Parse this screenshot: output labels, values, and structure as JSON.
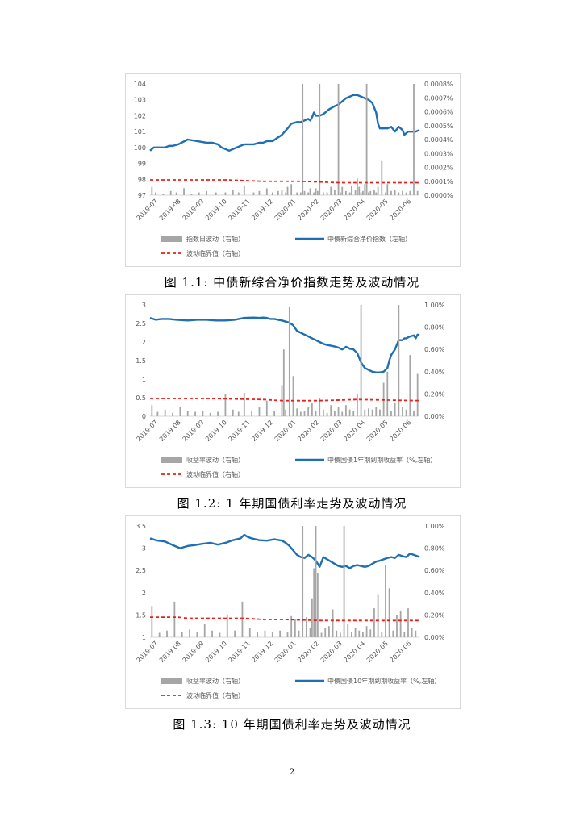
{
  "colors": {
    "line": "#1f6fb5",
    "bar": "#a6a6a6",
    "threshold": "#e8201c",
    "grid": "#d9d9d9"
  },
  "page_number": "2",
  "chart_data": [
    {
      "type": "line",
      "caption": "图 1.1:  中债新综合净价指数走势及波动情况",
      "x_ticks": [
        "2019-07",
        "2019-08",
        "2019-09",
        "2019-10",
        "2019-11",
        "2019-12",
        "2020-01",
        "2020-02",
        "2020-03",
        "2020-04",
        "2020-05",
        "2020-06"
      ],
      "y_left": {
        "ticks": [
          "104",
          "103",
          "102",
          "101",
          "100",
          "99",
          "98",
          "97"
        ],
        "range": [
          97,
          104
        ]
      },
      "y_right": {
        "ticks": [
          "0.0008%",
          "0.0007%",
          "0.0006%",
          "0.0005%",
          "0.0004%",
          "0.0003%",
          "0.0002%",
          "0.0001%",
          "0.0000%"
        ],
        "range": [
          0,
          0.0008
        ]
      },
      "legend": {
        "bar": "指数日波动（右轴）",
        "line": "中债新综合净价指数（左轴）",
        "threshold": "波动临界值（右轴）"
      },
      "series": [
        {
          "name": "中债新综合净价指数（左轴）",
          "axis": "left",
          "x": [
            0,
            2,
            5,
            8,
            10,
            12,
            15,
            20,
            25,
            30,
            33,
            36,
            38,
            42,
            46,
            50,
            55,
            58,
            60,
            62,
            65,
            70,
            73,
            75,
            78,
            80,
            82,
            84,
            85,
            86,
            87,
            88,
            90,
            92,
            95,
            98,
            100,
            102,
            104,
            106,
            108,
            110,
            112,
            114,
            116,
            118,
            119,
            120,
            121,
            122,
            124,
            126,
            128,
            130,
            132,
            134,
            135,
            136,
            137,
            139,
            141,
            143
          ],
          "values": [
            99.8,
            100.0,
            100.0,
            100.0,
            100.1,
            100.1,
            100.2,
            100.5,
            100.4,
            100.3,
            100.3,
            100.2,
            100.0,
            99.8,
            100.0,
            100.2,
            100.2,
            100.3,
            100.3,
            100.4,
            100.4,
            100.8,
            101.2,
            101.5,
            101.6,
            101.6,
            101.7,
            101.8,
            101.7,
            101.9,
            102.2,
            102.0,
            102.0,
            102.1,
            102.4,
            102.6,
            102.7,
            102.9,
            103.1,
            103.2,
            103.3,
            103.3,
            103.2,
            103.1,
            103.0,
            102.8,
            102.5,
            102.2,
            101.5,
            101.2,
            101.2,
            101.2,
            101.3,
            101.0,
            101.3,
            101.1,
            100.8,
            100.9,
            101.0,
            101.0,
            101.0,
            101.1
          ]
        },
        {
          "name": "指数日波动（右轴）",
          "axis": "right",
          "kind": "bar",
          "x": [
            1,
            3,
            7,
            11,
            14,
            18,
            22,
            26,
            30,
            35,
            40,
            44,
            47,
            50,
            55,
            58,
            62,
            65,
            68,
            70,
            72,
            73,
            75,
            78,
            80,
            81,
            82,
            84,
            85,
            87,
            88,
            89,
            90,
            92,
            94,
            96,
            98,
            100,
            101,
            102,
            104,
            106,
            107,
            109,
            110,
            111,
            112,
            113,
            114,
            115,
            116,
            117,
            119,
            120,
            121,
            123,
            125,
            126,
            128,
            130,
            132,
            134,
            136,
            138,
            140,
            142
          ],
          "values": [
            6e-05,
            2e-05,
            1e-05,
            3e-05,
            2e-05,
            5e-05,
            1e-05,
            2e-05,
            3e-05,
            2e-05,
            2e-05,
            4e-05,
            2e-05,
            7e-05,
            2e-05,
            3e-05,
            5e-05,
            2e-05,
            3e-05,
            4e-05,
            2e-05,
            6e-05,
            8e-05,
            2e-05,
            2e-05,
            0.0008,
            3e-05,
            2e-05,
            5e-05,
            2e-05,
            5e-05,
            3e-05,
            0.0008,
            2e-05,
            2e-05,
            6e-05,
            4e-05,
            0.0008,
            2e-05,
            6e-05,
            3e-05,
            2e-05,
            7e-05,
            4e-05,
            0.00012,
            6e-05,
            2e-05,
            3e-05,
            8e-05,
            0.0008,
            2e-05,
            3e-05,
            4e-05,
            2e-05,
            6e-05,
            0.00025,
            2e-05,
            8e-05,
            3e-05,
            4e-05,
            2e-05,
            3e-05,
            2e-05,
            3e-05,
            0.0008,
            3e-05
          ]
        },
        {
          "name": "波动临界值（右轴）",
          "axis": "right",
          "kind": "threshold",
          "x": [
            0,
            40,
            60,
            80,
            100,
            120,
            143
          ],
          "values": [
            0.00011,
            0.00011,
            0.0001,
            0.0001,
            9e-05,
            9e-05,
            9e-05
          ]
        }
      ]
    },
    {
      "type": "line",
      "caption": "图 1.2:  1 年期国债利率走势及波动情况",
      "x_ticks": [
        "2019-07",
        "2019-08",
        "2019-09",
        "2019-10",
        "2019-11",
        "2019-12",
        "2020-01",
        "2020-02",
        "2020-03",
        "2020-04",
        "2020-05",
        "2020-06"
      ],
      "y_left": {
        "ticks": [
          "3",
          "2.5",
          "2",
          "1.5",
          "1",
          "0.5",
          "0"
        ],
        "range": [
          0,
          3
        ]
      },
      "y_right": {
        "ticks": [
          "1.00%",
          "0.80%",
          "0.60%",
          "0.40%",
          "0.20%",
          "0.00%"
        ],
        "range": [
          0,
          1.0
        ]
      },
      "legend": {
        "bar": "收益率波动（右轴）",
        "line": "中债国债1年期到期收益率（%,左轴）",
        "threshold": "波动临界值（右轴）"
      },
      "series": [
        {
          "name": "中债国债1年期到期收益率（%,左轴）",
          "axis": "left",
          "x": [
            0,
            3,
            6,
            10,
            14,
            20,
            25,
            30,
            35,
            40,
            45,
            50,
            55,
            58,
            60,
            62,
            64,
            66,
            68,
            70,
            72,
            74,
            76,
            78,
            80,
            82,
            84,
            86,
            88,
            90,
            92,
            94,
            96,
            98,
            100,
            102,
            104,
            105,
            106,
            108,
            110,
            112,
            114,
            116,
            118,
            120,
            122,
            124,
            125,
            126,
            127,
            128,
            130,
            132,
            134,
            135,
            136,
            138,
            140,
            141,
            142,
            143
          ],
          "values": [
            2.65,
            2.6,
            2.62,
            2.62,
            2.6,
            2.58,
            2.6,
            2.6,
            2.58,
            2.58,
            2.6,
            2.65,
            2.66,
            2.65,
            2.66,
            2.65,
            2.62,
            2.62,
            2.6,
            2.58,
            2.55,
            2.52,
            2.45,
            2.3,
            2.25,
            2.2,
            2.15,
            2.1,
            2.05,
            2.0,
            1.95,
            1.92,
            1.9,
            1.88,
            1.85,
            1.8,
            1.87,
            1.85,
            1.82,
            1.8,
            1.7,
            1.45,
            1.3,
            1.25,
            1.2,
            1.18,
            1.18,
            1.2,
            1.25,
            1.3,
            1.5,
            1.65,
            1.8,
            2.05,
            2.05,
            2.1,
            2.1,
            2.15,
            2.18,
            2.1,
            2.2,
            2.18
          ]
        },
        {
          "name": "收益率波动（右轴）",
          "axis": "right",
          "kind": "bar",
          "x": [
            1,
            4,
            8,
            12,
            16,
            20,
            24,
            28,
            32,
            36,
            40,
            44,
            47,
            50,
            54,
            58,
            62,
            66,
            70,
            71,
            72,
            74,
            76,
            78,
            80,
            82,
            84,
            86,
            88,
            90,
            92,
            94,
            96,
            98,
            100,
            102,
            104,
            106,
            108,
            110,
            112,
            114,
            116,
            118,
            120,
            122,
            124,
            126,
            128,
            130,
            132,
            134,
            136,
            138,
            140,
            142
          ],
          "values": [
            0.1,
            0.04,
            0.06,
            0.03,
            0.08,
            0.05,
            0.04,
            0.05,
            0.03,
            0.04,
            0.2,
            0.06,
            0.04,
            0.21,
            0.05,
            0.08,
            0.14,
            0.05,
            0.28,
            0.6,
            0.06,
            0.98,
            0.36,
            0.07,
            0.04,
            0.05,
            0.08,
            0.12,
            0.05,
            0.16,
            0.06,
            0.03,
            0.1,
            0.05,
            0.08,
            0.04,
            0.1,
            0.06,
            0.05,
            0.2,
            1.0,
            0.06,
            0.07,
            0.06,
            0.08,
            0.06,
            0.3,
            0.4,
            0.05,
            0.12,
            1.0,
            0.08,
            0.06,
            0.55,
            0.05,
            0.38
          ]
        },
        {
          "name": "波动临界值（右轴）",
          "axis": "right",
          "kind": "threshold",
          "x": [
            0,
            30,
            60,
            70,
            90,
            110,
            143
          ],
          "values": [
            0.16,
            0.16,
            0.15,
            0.14,
            0.14,
            0.15,
            0.14
          ]
        }
      ]
    },
    {
      "type": "line",
      "caption": "图 1.3:  10 年期国债利率走势及波动情况",
      "x_ticks": [
        "2019-07",
        "2019-08",
        "2019-09",
        "2019-10",
        "2019-11",
        "2019-12",
        "2020-01",
        "2020-02",
        "2020-03",
        "2020-04",
        "2020-05",
        "2020-06"
      ],
      "y_left": {
        "ticks": [
          "3.5",
          "3",
          "2.5",
          "2",
          "1.5",
          "1"
        ],
        "range": [
          1,
          3.5
        ]
      },
      "y_right": {
        "ticks": [
          "1.00%",
          "0.80%",
          "0.60%",
          "0.40%",
          "0.20%",
          "0.00%"
        ],
        "range": [
          0,
          1.0
        ]
      },
      "legend": {
        "bar": "收益率波动（右轴）",
        "line": "中债国债10年期到期收益率（%,左轴）",
        "threshold": "波动临界值（右轴）"
      },
      "series": [
        {
          "name": "中债国债10年期到期收益率（%,左轴）",
          "axis": "left",
          "x": [
            0,
            4,
            8,
            12,
            16,
            20,
            24,
            28,
            32,
            36,
            40,
            44,
            48,
            50,
            52,
            54,
            58,
            62,
            66,
            70,
            72,
            74,
            76,
            78,
            80,
            82,
            84,
            86,
            88,
            90,
            92,
            94,
            96,
            98,
            100,
            102,
            104,
            106,
            108,
            110,
            112,
            114,
            116,
            118,
            120,
            122,
            124,
            126,
            128,
            130,
            132,
            134,
            136,
            138,
            140,
            142,
            143
          ],
          "values": [
            3.22,
            3.17,
            3.15,
            3.07,
            3.0,
            3.05,
            3.07,
            3.1,
            3.12,
            3.08,
            3.12,
            3.18,
            3.22,
            3.3,
            3.25,
            3.22,
            3.18,
            3.17,
            3.2,
            3.17,
            3.12,
            3.05,
            2.95,
            2.85,
            2.8,
            2.78,
            2.85,
            2.8,
            2.72,
            2.58,
            2.8,
            2.75,
            2.7,
            2.65,
            2.6,
            2.58,
            2.6,
            2.55,
            2.6,
            2.62,
            2.6,
            2.58,
            2.6,
            2.65,
            2.7,
            2.72,
            2.75,
            2.78,
            2.8,
            2.78,
            2.85,
            2.82,
            2.8,
            2.88,
            2.85,
            2.82,
            2.8
          ]
        },
        {
          "name": "收益率波动（右轴）",
          "axis": "right",
          "kind": "bar",
          "x": [
            1,
            5,
            9,
            13,
            17,
            21,
            25,
            29,
            33,
            37,
            41,
            45,
            49,
            53,
            57,
            61,
            65,
            69,
            73,
            75,
            77,
            79,
            81,
            83,
            85,
            86,
            87,
            88,
            89,
            91,
            93,
            95,
            97,
            99,
            101,
            103,
            105,
            107,
            109,
            111,
            113,
            115,
            117,
            119,
            121,
            123,
            125,
            127,
            129,
            131,
            133,
            135,
            137,
            139,
            141
          ],
          "values": [
            0.28,
            0.04,
            0.06,
            0.32,
            0.05,
            0.07,
            0.05,
            0.12,
            0.06,
            0.04,
            0.2,
            0.06,
            0.32,
            0.08,
            0.05,
            0.06,
            0.05,
            0.06,
            0.05,
            0.19,
            0.16,
            0.06,
            1.0,
            0.18,
            0.08,
            0.35,
            0.62,
            1.0,
            0.58,
            0.04,
            0.08,
            0.1,
            0.25,
            0.06,
            0.04,
            1.0,
            0.12,
            0.05,
            0.08,
            0.06,
            0.05,
            0.1,
            0.07,
            0.26,
            0.38,
            0.05,
            0.65,
            0.44,
            0.06,
            0.2,
            0.24,
            0.05,
            0.26,
            0.08,
            0.06
          ]
        },
        {
          "name": "波动临界值（右轴）",
          "axis": "right",
          "kind": "threshold",
          "x": [
            0,
            15,
            20,
            50,
            60,
            70,
            90,
            143
          ],
          "values": [
            0.18,
            0.18,
            0.17,
            0.17,
            0.16,
            0.16,
            0.15,
            0.15
          ]
        }
      ]
    }
  ]
}
